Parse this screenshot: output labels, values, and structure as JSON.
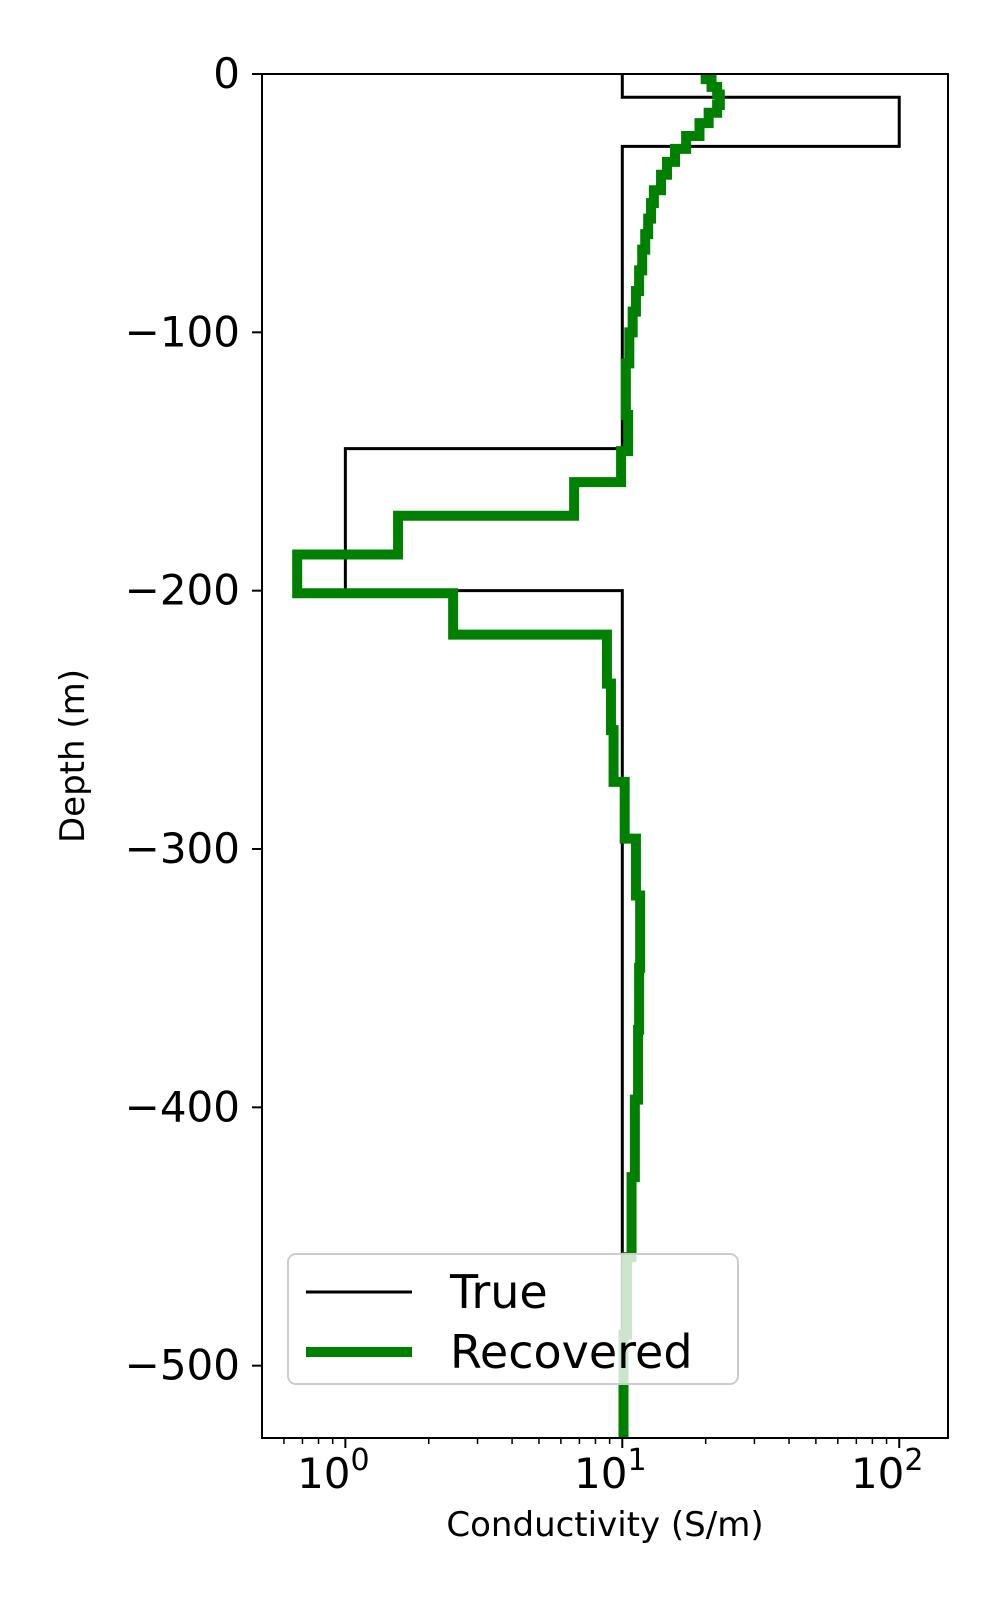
{
  "chart_data": {
    "type": "line",
    "title": "",
    "xlabel": "Conductivity (S/m)",
    "ylabel": "Depth (m)",
    "xscale": "log",
    "xlim": [
      0.5,
      150
    ],
    "ylim": [
      -528,
      0
    ],
    "grid": false,
    "legend_position": "lower-left",
    "x_tick_labels": [
      {
        "value": 1,
        "base": "10",
        "exponent": "0"
      },
      {
        "value": 10,
        "base": "10",
        "exponent": "1"
      },
      {
        "value": 100,
        "base": "10",
        "exponent": "2"
      }
    ],
    "y_ticks": [
      0,
      -100,
      -200,
      -300,
      -400,
      -500
    ],
    "y_tick_labels": [
      "0",
      "−100",
      "−200",
      "−300",
      "−400",
      "−500"
    ],
    "series": [
      {
        "name": "True",
        "color": "#000000",
        "points": [
          [
            10,
            0
          ],
          [
            10,
            -9
          ],
          [
            100,
            -9
          ],
          [
            100,
            -28
          ],
          [
            10,
            -28
          ],
          [
            10,
            -145
          ],
          [
            1,
            -145
          ],
          [
            1,
            -200
          ],
          [
            10,
            -200
          ],
          [
            10,
            -528
          ]
        ]
      },
      {
        "name": "Recovered",
        "color": "#008000",
        "points": [
          [
            20,
            0
          ],
          [
            20,
            -2
          ],
          [
            21,
            -2
          ],
          [
            21,
            -5
          ],
          [
            22,
            -5
          ],
          [
            22,
            -8
          ],
          [
            22.5,
            -8
          ],
          [
            22.5,
            -12
          ],
          [
            22,
            -12
          ],
          [
            22,
            -15
          ],
          [
            20.5,
            -15
          ],
          [
            20.5,
            -19
          ],
          [
            19,
            -19
          ],
          [
            19,
            -24
          ],
          [
            17,
            -24
          ],
          [
            17,
            -29
          ],
          [
            15.5,
            -29
          ],
          [
            15.5,
            -34
          ],
          [
            14.5,
            -34
          ],
          [
            14.5,
            -39
          ],
          [
            13.8,
            -39
          ],
          [
            13.8,
            -45
          ],
          [
            13,
            -45
          ],
          [
            13,
            -50
          ],
          [
            12.7,
            -50
          ],
          [
            12.7,
            -56
          ],
          [
            12.4,
            -56
          ],
          [
            12.4,
            -62
          ],
          [
            12.1,
            -62
          ],
          [
            12.1,
            -68
          ],
          [
            11.8,
            -68
          ],
          [
            11.8,
            -76
          ],
          [
            11.5,
            -76
          ],
          [
            11.5,
            -84
          ],
          [
            11.2,
            -84
          ],
          [
            11.2,
            -92
          ],
          [
            10.9,
            -92
          ],
          [
            10.9,
            -100
          ],
          [
            10.6,
            -100
          ],
          [
            10.6,
            -112
          ],
          [
            10.3,
            -112
          ],
          [
            10.3,
            -132
          ],
          [
            10.5,
            -132
          ],
          [
            10.5,
            -146
          ],
          [
            9.9,
            -146
          ],
          [
            9.9,
            -158
          ],
          [
            6.7,
            -158
          ],
          [
            6.7,
            -171
          ],
          [
            1.55,
            -171
          ],
          [
            1.55,
            -186
          ],
          [
            0.67,
            -186
          ],
          [
            0.67,
            -201
          ],
          [
            2.45,
            -201
          ],
          [
            2.45,
            -217
          ],
          [
            8.8,
            -217
          ],
          [
            8.8,
            -236
          ],
          [
            9.1,
            -236
          ],
          [
            9.1,
            -254
          ],
          [
            9.3,
            -254
          ],
          [
            9.3,
            -274
          ],
          [
            10.2,
            -274
          ],
          [
            10.2,
            -296
          ],
          [
            11.2,
            -296
          ],
          [
            11.2,
            -318
          ],
          [
            11.6,
            -318
          ],
          [
            11.6,
            -346
          ],
          [
            11.5,
            -346
          ],
          [
            11.5,
            -370
          ],
          [
            11.4,
            -370
          ],
          [
            11.4,
            -397
          ],
          [
            11.1,
            -397
          ],
          [
            11.1,
            -427
          ],
          [
            10.8,
            -427
          ],
          [
            10.8,
            -458
          ],
          [
            10.4,
            -458
          ],
          [
            10.4,
            -488
          ],
          [
            10.1,
            -488
          ],
          [
            10.1,
            -528
          ]
        ]
      }
    ]
  },
  "legend": {
    "items": [
      {
        "label": "True",
        "color": "#000000"
      },
      {
        "label": "Recovered",
        "color": "#008000"
      }
    ]
  }
}
